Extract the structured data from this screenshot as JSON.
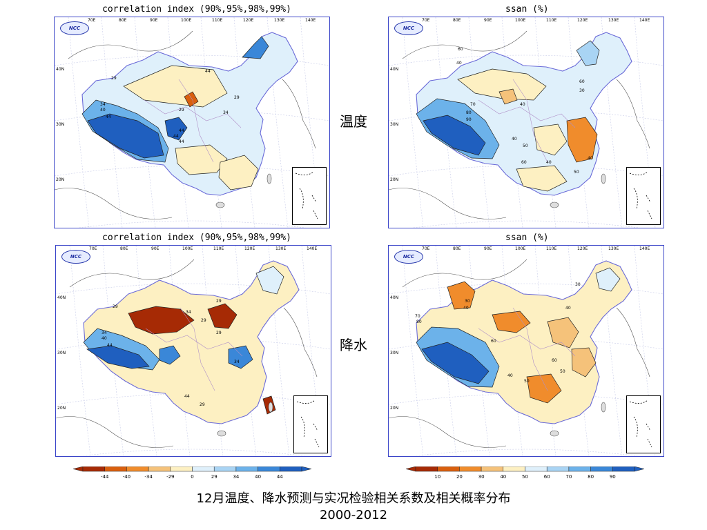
{
  "panels": [
    {
      "title": "correlation index (90%,95%,98%,99%)",
      "logo": "NCC",
      "lon_labels": [
        "70E",
        "80E",
        "90E",
        "100E",
        "110E",
        "120E",
        "130E",
        "140E"
      ],
      "lat_labels": [
        "40N",
        "30N",
        "20N"
      ]
    },
    {
      "title": "ssan (%)",
      "logo": "NCC",
      "lon_labels": [
        "70E",
        "80E",
        "90E",
        "100E",
        "110E",
        "120E",
        "130E",
        "140E"
      ],
      "lat_labels": [
        "40N",
        "30N",
        "20N"
      ]
    },
    {
      "title": "correlation index (90%,95%,98%,99%)",
      "logo": "NCC",
      "lon_labels": [
        "70E",
        "80E",
        "90E",
        "100E",
        "110E",
        "120E",
        "130E",
        "140E"
      ],
      "lat_labels": [
        "40N",
        "30N",
        "20N"
      ]
    },
    {
      "title": "ssan (%)",
      "logo": "NCC",
      "lon_labels": [
        "70E",
        "80E",
        "90E",
        "100E",
        "110E",
        "120E",
        "130E",
        "140E"
      ],
      "lat_labels": [
        "40N",
        "30N",
        "20N"
      ]
    }
  ],
  "contour_labels": {
    "p0": [
      "29",
      "34",
      "40",
      "44",
      "29",
      "44",
      "44",
      "44",
      "29",
      "34",
      "44"
    ],
    "p1": [
      "60",
      "40",
      "40",
      "70",
      "80",
      "90",
      "40",
      "50",
      "60",
      "40",
      "60",
      "30",
      "40",
      "50"
    ],
    "p2": [
      "29",
      "34",
      "40",
      "44",
      "34",
      "29",
      "29",
      "29",
      "34",
      "44",
      "29"
    ],
    "p3": [
      "30",
      "40",
      "70",
      "80",
      "60",
      "40",
      "50",
      "30",
      "40",
      "60",
      "50"
    ]
  },
  "row_labels": {
    "temperature": "温度",
    "precipitation": "降水"
  },
  "colorbars": {
    "correlation": {
      "ticks": [
        "-44",
        "-40",
        "-34",
        "-29",
        "0",
        "29",
        "34",
        "40",
        "44"
      ],
      "colors": [
        "#a62a05",
        "#d95f0e",
        "#f08c2c",
        "#f5c27a",
        "#fdf0c2",
        "#dff0fb",
        "#a9d4f4",
        "#6cb2ea",
        "#3a87d8",
        "#1f5fbf"
      ]
    },
    "ssan": {
      "ticks": [
        "10",
        "20",
        "30",
        "40",
        "50",
        "60",
        "70",
        "80",
        "90"
      ],
      "colors": [
        "#a62a05",
        "#d95f0e",
        "#f08c2c",
        "#f5c27a",
        "#fdf0c2",
        "#dff0fb",
        "#a9d4f4",
        "#6cb2ea",
        "#3a87d8",
        "#1f5fbf"
      ]
    }
  },
  "caption": {
    "line1": "12月温度、降水预测与实况检验相关系数及相关概率分布",
    "line2": "2000-2012"
  }
}
